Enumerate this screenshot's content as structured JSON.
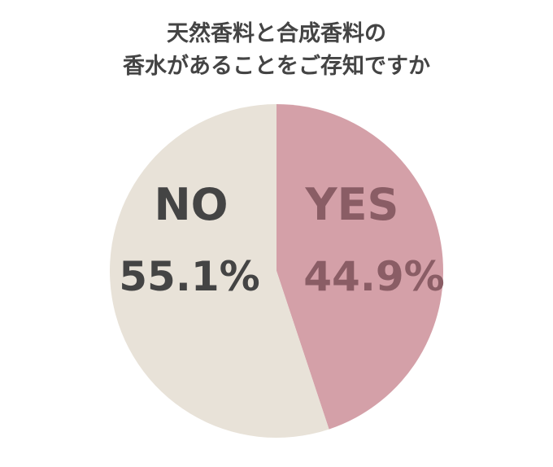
{
  "chart_data": {
    "type": "pie",
    "title": [
      "天然香料と合成香料の",
      "香水があることをご存知ですか"
    ],
    "categories": [
      "YES",
      "NO"
    ],
    "values": [
      44.9,
      55.1
    ],
    "value_labels": [
      "44.9%",
      "55.1%"
    ],
    "colors": [
      "#d4a0a8",
      "#e8e2d8"
    ],
    "start_angle": 0,
    "direction": "clockwise"
  }
}
